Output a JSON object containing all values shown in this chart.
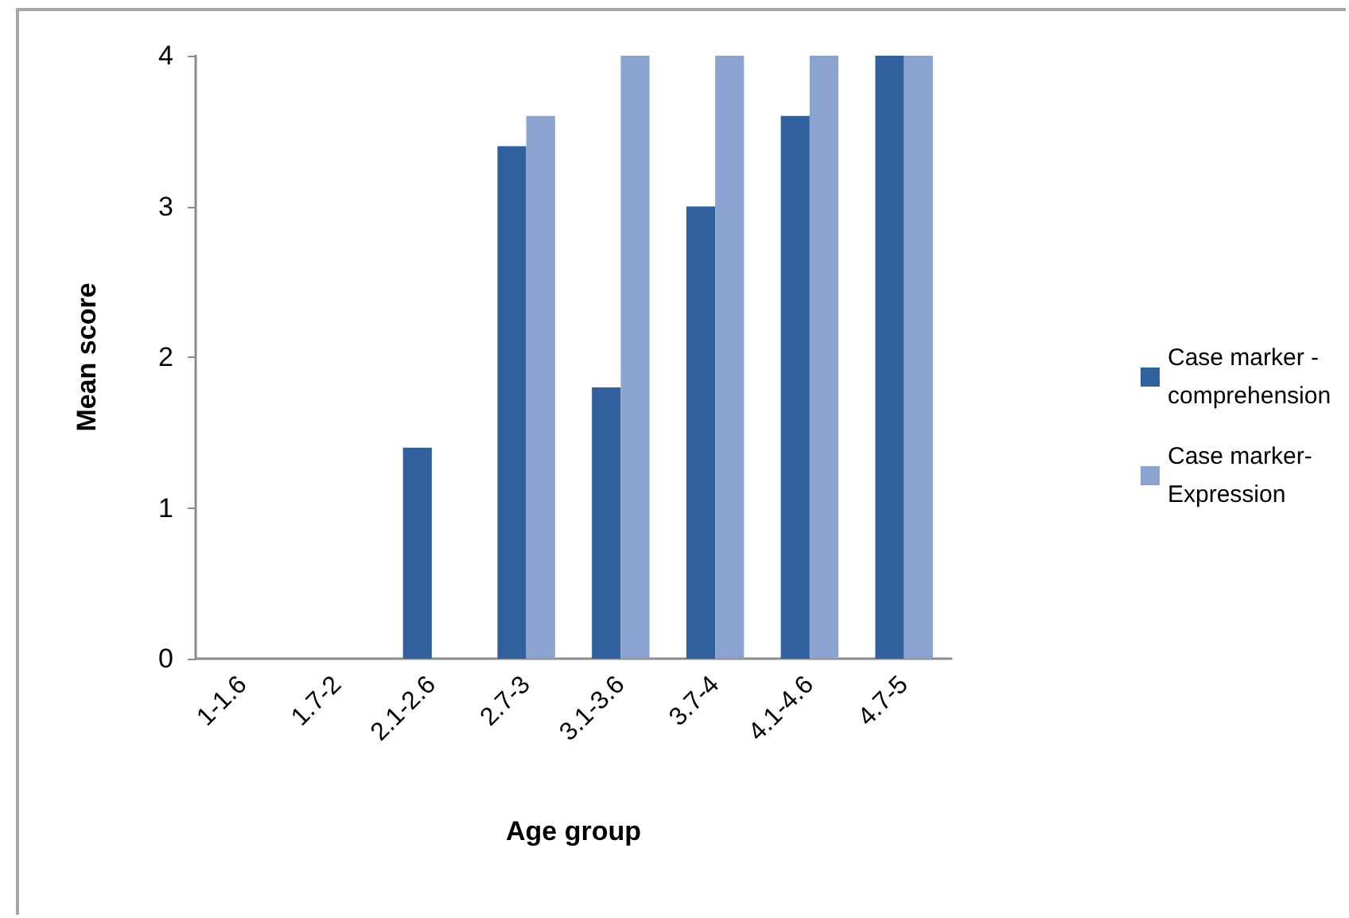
{
  "chart_data": {
    "type": "bar",
    "xlabel": "Age group",
    "ylabel": "Mean score",
    "categories": [
      "1-1.6",
      "1.7-2",
      "2.1-2.6",
      "2.7-3",
      "3.1-3.6",
      "3.7-4",
      "4.1-4.6",
      "4.7-5"
    ],
    "series": [
      {
        "name": "Case marker - comprehension",
        "color": "#30609e",
        "values": [
          0,
          0,
          1.4,
          3.4,
          1.8,
          3.0,
          3.6,
          4
        ]
      },
      {
        "name": "Case marker- Expression",
        "color": "#8ba3cf",
        "values": [
          0,
          0,
          0,
          3.6,
          4,
          4,
          4,
          4
        ]
      }
    ],
    "ylim": [
      0,
      4
    ],
    "yticks": [
      0,
      1,
      2,
      3,
      4
    ],
    "grid": false,
    "legend": "right"
  }
}
